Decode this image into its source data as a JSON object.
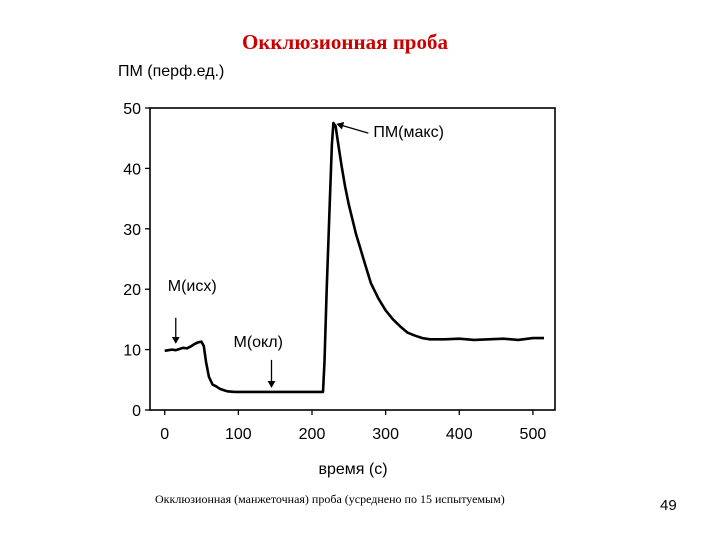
{
  "slide": {
    "title": "Окклюзионная проба",
    "caption": "Окклюзионная (манжеточная) проба (усреднено по 15 испытуемым)",
    "page_number": "49"
  },
  "chart_data": {
    "type": "line",
    "title": "",
    "ylabel": "ПМ (перф.ед.)",
    "xlabel": "время (с)",
    "xlim": [
      -20,
      530
    ],
    "ylim": [
      0,
      50
    ],
    "xticks": [
      0,
      100,
      200,
      300,
      400,
      500
    ],
    "yticks": [
      0,
      10,
      20,
      30,
      40,
      50
    ],
    "grid": false,
    "series": [
      {
        "color": "#000000",
        "points": [
          [
            0,
            9.8
          ],
          [
            5,
            9.9
          ],
          [
            10,
            10.0
          ],
          [
            15,
            9.9
          ],
          [
            20,
            10.1
          ],
          [
            25,
            10.3
          ],
          [
            30,
            10.2
          ],
          [
            35,
            10.5
          ],
          [
            40,
            10.9
          ],
          [
            45,
            11.2
          ],
          [
            50,
            11.3
          ],
          [
            53,
            10.6
          ],
          [
            56,
            8.0
          ],
          [
            60,
            5.5
          ],
          [
            65,
            4.2
          ],
          [
            70,
            3.9
          ],
          [
            75,
            3.5
          ],
          [
            80,
            3.3
          ],
          [
            85,
            3.1
          ],
          [
            95,
            3.0
          ],
          [
            110,
            3.0
          ],
          [
            130,
            3.0
          ],
          [
            150,
            3.0
          ],
          [
            170,
            3.0
          ],
          [
            190,
            3.0
          ],
          [
            210,
            3.0
          ],
          [
            215,
            3.0
          ],
          [
            217,
            8.0
          ],
          [
            220,
            20.0
          ],
          [
            224,
            34.0
          ],
          [
            227,
            44.0
          ],
          [
            229,
            47.5
          ],
          [
            232,
            47.0
          ],
          [
            235,
            44.5
          ],
          [
            240,
            40.5
          ],
          [
            245,
            37.0
          ],
          [
            250,
            34.0
          ],
          [
            255,
            31.5
          ],
          [
            260,
            29.0
          ],
          [
            265,
            27.0
          ],
          [
            270,
            25.0
          ],
          [
            275,
            23.0
          ],
          [
            280,
            21.0
          ],
          [
            290,
            18.5
          ],
          [
            300,
            16.5
          ],
          [
            310,
            15.0
          ],
          [
            320,
            13.8
          ],
          [
            330,
            12.8
          ],
          [
            340,
            12.3
          ],
          [
            350,
            11.9
          ],
          [
            360,
            11.7
          ],
          [
            380,
            11.7
          ],
          [
            400,
            11.8
          ],
          [
            420,
            11.6
          ],
          [
            440,
            11.7
          ],
          [
            460,
            11.8
          ],
          [
            480,
            11.6
          ],
          [
            500,
            11.9
          ],
          [
            515,
            11.9
          ]
        ]
      }
    ],
    "annotations": [
      {
        "label": "М(исх)",
        "point": [
          15,
          10.3
        ],
        "arrow": true
      },
      {
        "label": "М(окл)",
        "point": [
          145,
          3.0
        ],
        "arrow": true
      },
      {
        "label": "ПМ(макс)",
        "point": [
          229,
          47.5
        ],
        "arrow": true
      }
    ]
  }
}
